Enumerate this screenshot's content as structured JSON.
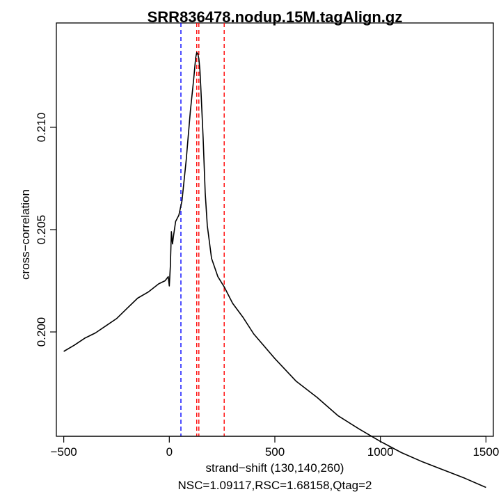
{
  "chart_data": {
    "type": "line",
    "title": "SRR836478.nodup.15M.tagAlign.gz",
    "xlabel": "strand−shift (130,140,260)",
    "ylabel": "cross−correlation",
    "subtitle": "NSC=1.09117,RSC=1.68158,Qtag=2",
    "xlim": [
      -535,
      1535
    ],
    "ylim": [
      0.1949,
      0.2151
    ],
    "x_ticks": [
      -500,
      0,
      500,
      1000,
      1500
    ],
    "x_tick_labels": [
      "−500",
      "0",
      "500",
      "1000",
      "1500"
    ],
    "y_ticks": [
      0.2,
      0.205,
      0.21
    ],
    "y_tick_labels": [
      "0.200",
      "0.205",
      "0.210"
    ],
    "vlines": [
      {
        "x": 55,
        "color": "#0000ff",
        "style": "dashed"
      },
      {
        "x": 130,
        "color": "#ff0000",
        "style": "dashed"
      },
      {
        "x": 140,
        "color": "#ff0000",
        "style": "dashed"
      },
      {
        "x": 260,
        "color": "#ff0000",
        "style": "dashed"
      }
    ],
    "series": [
      {
        "name": "cross-correlation",
        "color": "#000000",
        "x": [
          -500,
          -450,
          -400,
          -350,
          -300,
          -250,
          -200,
          -150,
          -100,
          -50,
          -20,
          -5,
          0,
          5,
          10,
          15,
          20,
          30,
          45,
          60,
          80,
          100,
          115,
          125,
          130,
          135,
          140,
          145,
          150,
          160,
          170,
          180,
          200,
          230,
          260,
          300,
          350,
          400,
          500,
          600,
          700,
          800,
          900,
          1000,
          1100,
          1200,
          1300,
          1400,
          1500
        ],
        "y": [
          0.19905,
          0.19935,
          0.1997,
          0.19995,
          0.2003,
          0.20065,
          0.20115,
          0.20165,
          0.20195,
          0.20235,
          0.2025,
          0.2027,
          0.20225,
          0.2032,
          0.2049,
          0.2043,
          0.2047,
          0.2054,
          0.2057,
          0.2064,
          0.2084,
          0.2108,
          0.2123,
          0.2134,
          0.21365,
          0.2136,
          0.21335,
          0.2128,
          0.2118,
          0.2095,
          0.2068,
          0.2052,
          0.2036,
          0.2027,
          0.2022,
          0.2014,
          0.2007,
          0.1999,
          0.1987,
          0.1976,
          0.1968,
          0.1959,
          0.19525,
          0.19465,
          0.1941,
          0.19365,
          0.19325,
          0.19285,
          0.1924
        ]
      }
    ]
  }
}
